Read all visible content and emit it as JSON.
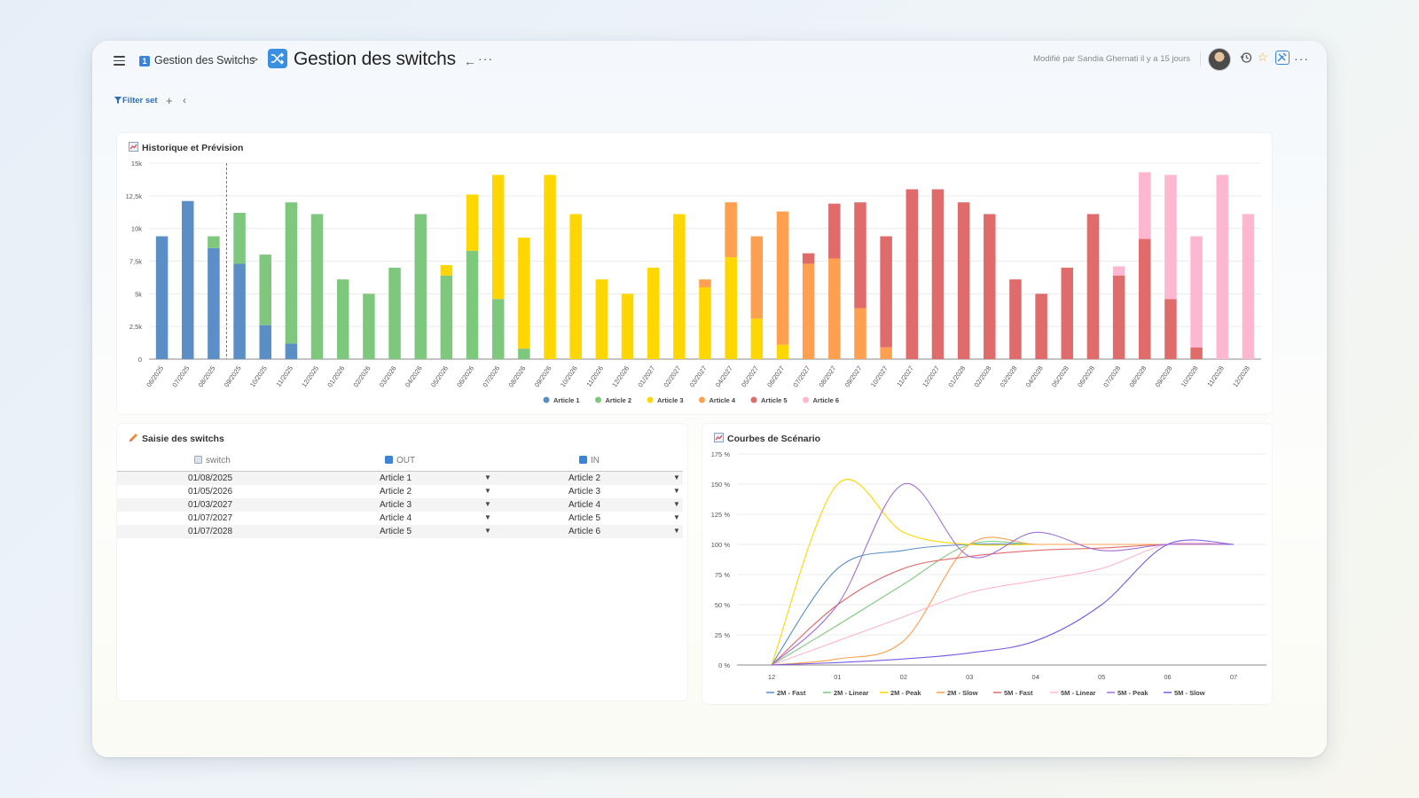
{
  "header": {
    "breadcrumb_badge": "1",
    "breadcrumb": "Gestion des Switchs",
    "breadcrumb_sep": ">",
    "title": "Gestion des switchs",
    "modified": "Modifié par Sandia Ghernati il y a 15 jours",
    "icons": [
      "menu-icon",
      "shuffle-icon",
      "back-arrow-icon",
      "more-icon",
      "avatar",
      "history-icon",
      "star-icon",
      "tools-icon"
    ]
  },
  "filter": {
    "label": "Filter set"
  },
  "hist_card": {
    "title": "Historique et Prévision"
  },
  "saisie_card": {
    "title": "Saisie des switchs",
    "columns": [
      "switch",
      "OUT",
      "IN"
    ],
    "rows": [
      {
        "date": "01/08/2025",
        "out": "Article 1",
        "in": "Article 2"
      },
      {
        "date": "01/05/2026",
        "out": "Article 2",
        "in": "Article 3"
      },
      {
        "date": "01/03/2027",
        "out": "Article 3",
        "in": "Article 4"
      },
      {
        "date": "01/07/2027",
        "out": "Article 4",
        "in": "Article 5"
      },
      {
        "date": "01/07/2028",
        "out": "Article 5",
        "in": "Article 6"
      }
    ]
  },
  "courbes_card": {
    "title": "Courbes de Scénario"
  },
  "chart_data": [
    {
      "type": "bar",
      "stacked": true,
      "title": "Historique et Prévision",
      "categories": [
        "06/2025",
        "07/2025",
        "08/2025",
        "09/2025",
        "10/2025",
        "11/2025",
        "12/2025",
        "01/2026",
        "02/2026",
        "03/2026",
        "04/2026",
        "05/2026",
        "06/2026",
        "07/2026",
        "08/2026",
        "09/2026",
        "10/2026",
        "11/2026",
        "12/2026",
        "01/2027",
        "02/2027",
        "03/2027",
        "04/2027",
        "05/2027",
        "06/2027",
        "07/2027",
        "08/2027",
        "09/2027",
        "10/2027",
        "11/2027",
        "12/2027",
        "01/2028",
        "02/2028",
        "03/2028",
        "04/2028",
        "05/2028",
        "06/2028",
        "07/2028",
        "08/2028",
        "09/2028",
        "10/2028",
        "11/2028",
        "12/2028"
      ],
      "ylim": [
        0,
        15000
      ],
      "yticks": [
        "0",
        "2,5k",
        "5k",
        "7,5k",
        "10k",
        "12,5k",
        "15k"
      ],
      "ytick_values": [
        0,
        2500,
        5000,
        7500,
        10000,
        12500,
        15000
      ],
      "reference_line_after_category": "08/2025",
      "legend_position": "bottom",
      "series": [
        {
          "name": "Article 1",
          "color": "#5b8ec4",
          "values": [
            9400,
            12100,
            8500,
            7300,
            2600,
            1200,
            0,
            0,
            0,
            0,
            0,
            0,
            0,
            0,
            0,
            0,
            0,
            0,
            0,
            0,
            0,
            0,
            0,
            0,
            0,
            0,
            0,
            0,
            0,
            0,
            0,
            0,
            0,
            0,
            0,
            0,
            0,
            0,
            0,
            0,
            0,
            0,
            0
          ]
        },
        {
          "name": "Article 2",
          "color": "#7ec87e",
          "values": [
            0,
            0,
            900,
            3900,
            5400,
            10800,
            11100,
            6100,
            5000,
            7000,
            11100,
            6400,
            8300,
            4600,
            800,
            0,
            0,
            0,
            0,
            0,
            0,
            0,
            0,
            0,
            0,
            0,
            0,
            0,
            0,
            0,
            0,
            0,
            0,
            0,
            0,
            0,
            0,
            0,
            0,
            0,
            0,
            0,
            0
          ]
        },
        {
          "name": "Article 3",
          "color": "#ffd700",
          "values": [
            0,
            0,
            0,
            0,
            0,
            0,
            0,
            0,
            0,
            0,
            0,
            800,
            4300,
            9500,
            8500,
            14100,
            11100,
            6100,
            5000,
            7000,
            11100,
            5500,
            7800,
            3100,
            1100,
            0,
            0,
            0,
            0,
            0,
            0,
            0,
            0,
            0,
            0,
            0,
            0,
            0,
            0,
            0,
            0,
            0,
            0
          ]
        },
        {
          "name": "Article 4",
          "color": "#ffa050",
          "values": [
            0,
            0,
            0,
            0,
            0,
            0,
            0,
            0,
            0,
            0,
            0,
            0,
            0,
            0,
            0,
            0,
            0,
            0,
            0,
            0,
            0,
            600,
            4200,
            6300,
            10200,
            7300,
            7700,
            3900,
            900,
            0,
            0,
            0,
            0,
            0,
            0,
            0,
            0,
            0,
            0,
            0,
            0,
            0,
            0
          ]
        },
        {
          "name": "Article 5",
          "color": "#e06b6b",
          "values": [
            0,
            0,
            0,
            0,
            0,
            0,
            0,
            0,
            0,
            0,
            0,
            0,
            0,
            0,
            0,
            0,
            0,
            0,
            0,
            0,
            0,
            0,
            0,
            0,
            0,
            800,
            4200,
            8100,
            8500,
            13000,
            13000,
            12000,
            11100,
            6100,
            5000,
            7000,
            11100,
            6400,
            9200,
            4600,
            900,
            0,
            0
          ]
        },
        {
          "name": "Article 6",
          "color": "#ffb6d0",
          "values": [
            0,
            0,
            0,
            0,
            0,
            0,
            0,
            0,
            0,
            0,
            0,
            0,
            0,
            0,
            0,
            0,
            0,
            0,
            0,
            0,
            0,
            0,
            0,
            0,
            0,
            0,
            0,
            0,
            0,
            0,
            0,
            0,
            0,
            0,
            0,
            0,
            0,
            700,
            5100,
            9500,
            8500,
            14100,
            11100
          ]
        }
      ]
    },
    {
      "type": "line",
      "title": "Courbes de Scénario",
      "x": [
        "12",
        "01",
        "02",
        "03",
        "04",
        "05",
        "06",
        "07"
      ],
      "ylim": [
        0,
        175
      ],
      "yticks": [
        "0 %",
        "25 %",
        "50 %",
        "75 %",
        "100 %",
        "125 %",
        "150 %",
        "175 %"
      ],
      "ytick_values": [
        0,
        25,
        50,
        75,
        100,
        125,
        150,
        175
      ],
      "legend_position": "bottom",
      "series": [
        {
          "name": "2M - Fast",
          "color": "#5b8ec4",
          "values": [
            0,
            80,
            95,
            100,
            100,
            100,
            100,
            100
          ]
        },
        {
          "name": "2M - Linear",
          "color": "#7ec87e",
          "values": [
            0,
            33,
            67,
            100,
            100,
            100,
            100,
            100
          ]
        },
        {
          "name": "2M - Peak",
          "color": "#ffd700",
          "values": [
            0,
            150,
            110,
            100,
            100,
            100,
            100,
            100
          ]
        },
        {
          "name": "2M - Slow",
          "color": "#ffa050",
          "values": [
            0,
            5,
            20,
            100,
            100,
            100,
            100,
            100
          ]
        },
        {
          "name": "5M - Fast",
          "color": "#e06b6b",
          "values": [
            0,
            50,
            80,
            90,
            95,
            97,
            100,
            100
          ]
        },
        {
          "name": "5M - Linear",
          "color": "#ffb6d0",
          "values": [
            0,
            20,
            40,
            60,
            70,
            80,
            100,
            100
          ]
        },
        {
          "name": "5M - Peak",
          "color": "#a070d8",
          "values": [
            0,
            50,
            150,
            90,
            110,
            95,
            100,
            100
          ]
        },
        {
          "name": "5M - Slow",
          "color": "#7a5ae0",
          "values": [
            0,
            2,
            5,
            10,
            20,
            50,
            100,
            100
          ]
        }
      ]
    }
  ]
}
